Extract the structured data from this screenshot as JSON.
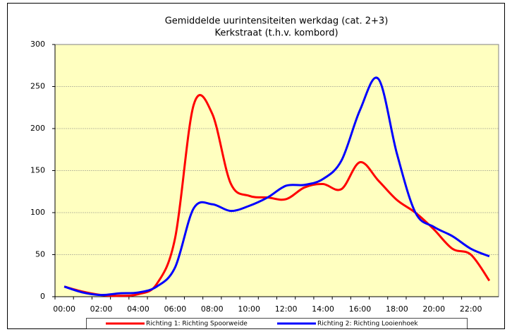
{
  "chart_data": {
    "type": "line",
    "title": [
      "Gemiddelde uurintensiteiten werkdag (cat. 2+3)",
      "Kerkstraat (t.h.v. kombord)"
    ],
    "categories": [
      "00:00",
      null,
      "02:00",
      null,
      "04:00",
      null,
      "06:00",
      null,
      "08:00",
      null,
      "10:00",
      null,
      "12:00",
      null,
      "14:00",
      null,
      "16:00",
      null,
      "18:00",
      null,
      "20:00",
      null,
      "22:00",
      null
    ],
    "series": [
      {
        "name": "Richting 1: Richting Spoorweide",
        "color": "#ff0000",
        "values": [
          12,
          6,
          2,
          1,
          3,
          15,
          70,
          228,
          218,
          135,
          120,
          118,
          116,
          130,
          134,
          128,
          160,
          138,
          115,
          100,
          80,
          57,
          50,
          19
        ]
      },
      {
        "name": "Richting 2: Richting Looienhoek",
        "color": "#0000ff",
        "values": [
          12,
          5,
          2,
          4,
          5,
          12,
          35,
          105,
          110,
          102,
          108,
          118,
          132,
          133,
          140,
          162,
          222,
          259,
          170,
          100,
          83,
          72,
          57,
          48
        ]
      }
    ],
    "ylim": [
      0,
      300
    ],
    "yticks": [
      0,
      50,
      100,
      150,
      200,
      250,
      300
    ],
    "grid": true,
    "legend": "bottom"
  }
}
